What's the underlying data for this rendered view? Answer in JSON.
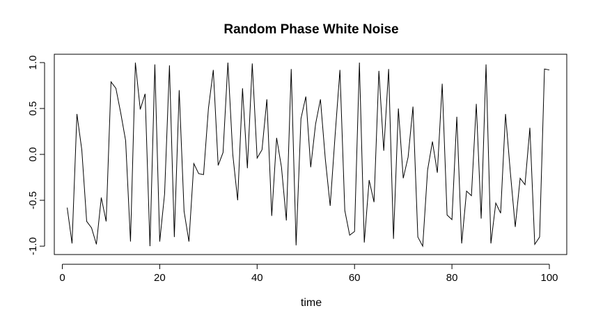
{
  "chart_data": {
    "type": "line",
    "title": "Random Phase White Noise",
    "xlabel": "time",
    "ylabel": "",
    "xlim": [
      1,
      100
    ],
    "ylim": [
      -1.0,
      1.0
    ],
    "x_ticks": [
      0,
      20,
      40,
      60,
      80,
      100
    ],
    "x_tick_labels": [
      "0",
      "20",
      "40",
      "60",
      "80",
      "100"
    ],
    "y_ticks": [
      -1.0,
      -0.5,
      0.0,
      0.5,
      1.0
    ],
    "y_tick_labels": [
      "-1.0",
      "-0.5",
      "0.0",
      "0.5",
      "1.0"
    ],
    "grid": false,
    "line_color": "#000000",
    "series": [
      {
        "x": [
          1,
          2,
          3,
          4,
          5,
          6,
          7,
          8,
          9,
          10,
          11,
          12,
          13,
          14,
          15,
          16,
          17,
          18,
          19,
          20,
          21,
          22,
          23,
          24,
          25,
          26,
          27,
          28,
          29,
          30,
          31,
          32,
          33,
          34,
          35,
          36,
          37,
          38,
          39,
          40,
          41,
          42,
          43,
          44,
          45,
          46,
          47,
          48,
          49,
          50,
          51,
          52,
          53,
          54,
          55,
          56,
          57,
          58,
          59,
          60,
          61,
          62,
          63,
          64,
          65,
          66,
          67,
          68,
          69,
          70,
          71,
          72,
          73,
          74,
          75,
          76,
          77,
          78,
          79,
          80,
          81,
          82,
          83,
          84,
          85,
          86,
          87,
          88,
          89,
          90,
          91,
          92,
          93,
          94,
          95,
          96,
          97,
          98,
          99,
          100
        ],
        "values": [
          -0.58,
          -0.97,
          0.44,
          0.05,
          -0.73,
          -0.8,
          -0.98,
          -0.47,
          -0.73,
          0.79,
          0.72,
          0.45,
          0.15,
          -0.95,
          1.0,
          0.49,
          0.66,
          -1.0,
          0.98,
          -0.95,
          -0.43,
          0.97,
          -0.9,
          0.7,
          -0.62,
          -0.95,
          -0.1,
          -0.21,
          -0.22,
          0.5,
          0.92,
          -0.12,
          0.02,
          1.0,
          0.0,
          -0.5,
          0.72,
          -0.15,
          0.99,
          -0.04,
          0.05,
          0.6,
          -0.67,
          0.18,
          -0.14,
          -0.72,
          0.93,
          -0.99,
          0.39,
          0.63,
          -0.14,
          0.33,
          0.6,
          -0.05,
          -0.56,
          0.2,
          0.92,
          -0.61,
          -0.88,
          -0.84,
          1.0,
          -0.96,
          -0.28,
          -0.52,
          0.91,
          0.04,
          0.93,
          -0.92,
          0.5,
          -0.26,
          -0.03,
          0.52,
          -0.9,
          -1.0,
          -0.17,
          0.14,
          -0.2,
          0.77,
          -0.66,
          -0.71,
          0.41,
          -0.97,
          -0.4,
          -0.45,
          0.55,
          -0.7,
          0.98,
          -0.97,
          -0.53,
          -0.64,
          0.44,
          -0.2,
          -0.79,
          -0.26,
          -0.33,
          0.29,
          -0.98,
          -0.9,
          0.93,
          0.92
        ]
      }
    ]
  }
}
